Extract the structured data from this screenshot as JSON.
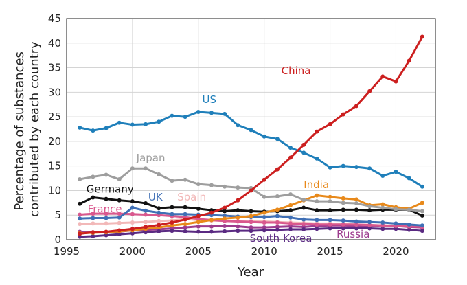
{
  "chart_data": {
    "type": "line",
    "title": "",
    "xlabel": "Year",
    "ylabel": "Percentage of substances contributed by each country",
    "xlim": [
      1995,
      2023
    ],
    "ylim": [
      0,
      45
    ],
    "xticks": [
      1995,
      2000,
      2005,
      2010,
      2015,
      2020
    ],
    "yticks": [
      0,
      5,
      10,
      15,
      20,
      25,
      30,
      35,
      40,
      45
    ],
    "grid": true,
    "legend": "inline labels",
    "x": [
      1996,
      1997,
      1998,
      1999,
      2000,
      2001,
      2002,
      2003,
      2004,
      2005,
      2006,
      2007,
      2008,
      2009,
      2010,
      2011,
      2012,
      2013,
      2014,
      2015,
      2016,
      2017,
      2018,
      2019,
      2020,
      2021,
      2022
    ],
    "series": [
      {
        "name": "China",
        "color": "#cc1f1f",
        "labelx": 2011.3,
        "labely": 33.7,
        "values": [
          1.2,
          1.5,
          1.6,
          1.9,
          2.2,
          2.6,
          3.0,
          3.5,
          4.1,
          4.8,
          5.5,
          6.5,
          8.0,
          10.0,
          12.2,
          14.3,
          16.7,
          19.3,
          22.0,
          23.5,
          25.5,
          27.2,
          30.2,
          33.2,
          32.2,
          36.4,
          41.3
        ]
      },
      {
        "name": "US",
        "color": "#1f7fba",
        "labelx": 2005.3,
        "labely": 27.8,
        "values": [
          22.8,
          22.2,
          22.7,
          23.8,
          23.4,
          23.5,
          24.0,
          25.2,
          25.0,
          26.0,
          25.8,
          25.6,
          23.3,
          22.3,
          21.0,
          20.5,
          18.7,
          17.7,
          16.5,
          14.7,
          15.0,
          14.8,
          14.5,
          13.0,
          13.8,
          12.5,
          10.8
        ]
      },
      {
        "name": "Japan",
        "color": "#9e9e9e",
        "labelx": 2000.3,
        "labely": 15.9,
        "values": [
          12.3,
          12.8,
          13.2,
          12.3,
          14.5,
          14.5,
          13.3,
          12.0,
          12.2,
          11.3,
          11.1,
          10.8,
          10.6,
          10.5,
          8.7,
          8.8,
          9.2,
          8.1,
          7.8,
          7.8,
          7.5,
          7.4,
          6.8,
          6.5,
          6.2,
          6.1,
          5.8
        ]
      },
      {
        "name": "India",
        "color": "#e8891a",
        "labelx": 2013.0,
        "labely": 10.5,
        "values": [
          1.3,
          1.4,
          1.5,
          1.7,
          1.9,
          2.2,
          2.5,
          2.9,
          3.2,
          3.6,
          4.0,
          4.3,
          4.5,
          4.8,
          5.5,
          6.1,
          7.0,
          8.0,
          9.0,
          8.7,
          8.4,
          8.2,
          7.0,
          7.2,
          6.6,
          6.3,
          7.5
        ]
      },
      {
        "name": "Germany",
        "color": "#111111",
        "labelx": 1996.5,
        "labely": 9.6,
        "values": [
          7.3,
          8.6,
          8.3,
          8.0,
          7.8,
          7.4,
          6.4,
          6.6,
          6.6,
          6.3,
          6.0,
          5.8,
          6.0,
          5.8,
          5.7,
          5.8,
          6.0,
          6.5,
          6.0,
          6.0,
          6.1,
          6.1,
          6.0,
          6.1,
          6.1,
          6.1,
          4.9
        ]
      },
      {
        "name": "UK",
        "color": "#3f6fb5",
        "labelx": 2001.2,
        "labely": 8.0,
        "values": [
          4.3,
          4.4,
          4.4,
          4.5,
          6.5,
          5.9,
          5.5,
          5.2,
          5.2,
          5.1,
          5.0,
          4.9,
          4.7,
          4.6,
          4.6,
          4.8,
          4.5,
          4.1,
          4.0,
          4.0,
          3.9,
          3.7,
          3.6,
          3.5,
          3.3,
          3.1,
          2.9
        ]
      },
      {
        "name": "France",
        "color": "#d9588e",
        "labelx": 1996.6,
        "labely": 5.5,
        "values": [
          5.1,
          5.3,
          5.3,
          5.3,
          5.2,
          5.1,
          5.0,
          4.8,
          4.6,
          4.2,
          4.0,
          3.8,
          3.7,
          3.6,
          3.5,
          3.5,
          3.3,
          3.2,
          3.1,
          3.1,
          3.1,
          3.1,
          3.0,
          2.9,
          2.8,
          2.7,
          2.6
        ]
      },
      {
        "name": "Spain",
        "color": "#f2b8b8",
        "labelx": 2003.4,
        "labely": 8.0,
        "values": [
          3.2,
          3.3,
          3.3,
          3.4,
          3.5,
          3.6,
          3.8,
          3.9,
          4.2,
          4.0,
          3.9,
          3.8,
          3.8,
          3.8,
          3.7,
          3.6,
          3.5,
          3.4,
          3.3,
          3.3,
          3.2,
          3.1,
          3.0,
          2.9,
          2.9,
          2.8,
          2.7
        ]
      },
      {
        "name": "South Korea",
        "color": "#5a2a82",
        "labelx": 2008.9,
        "labely": -0.4,
        "values": [
          0.6,
          0.7,
          0.9,
          1.1,
          1.3,
          1.5,
          1.7,
          1.8,
          1.7,
          1.6,
          1.6,
          1.7,
          1.8,
          1.8,
          1.9,
          2.0,
          2.1,
          2.1,
          2.2,
          2.3,
          2.3,
          2.3,
          2.3,
          2.2,
          2.2,
          2.0,
          1.8
        ]
      },
      {
        "name": "Russia",
        "color": "#9c3b8e",
        "labelx": 2015.5,
        "labely": 0.4,
        "values": [
          1.6,
          1.5,
          1.5,
          1.6,
          1.9,
          2.0,
          2.1,
          2.3,
          2.5,
          2.7,
          2.7,
          2.8,
          2.7,
          2.5,
          2.5,
          2.6,
          2.7,
          2.6,
          2.8,
          2.9,
          2.9,
          2.8,
          2.8,
          2.9,
          2.8,
          2.6,
          2.5
        ]
      }
    ]
  }
}
